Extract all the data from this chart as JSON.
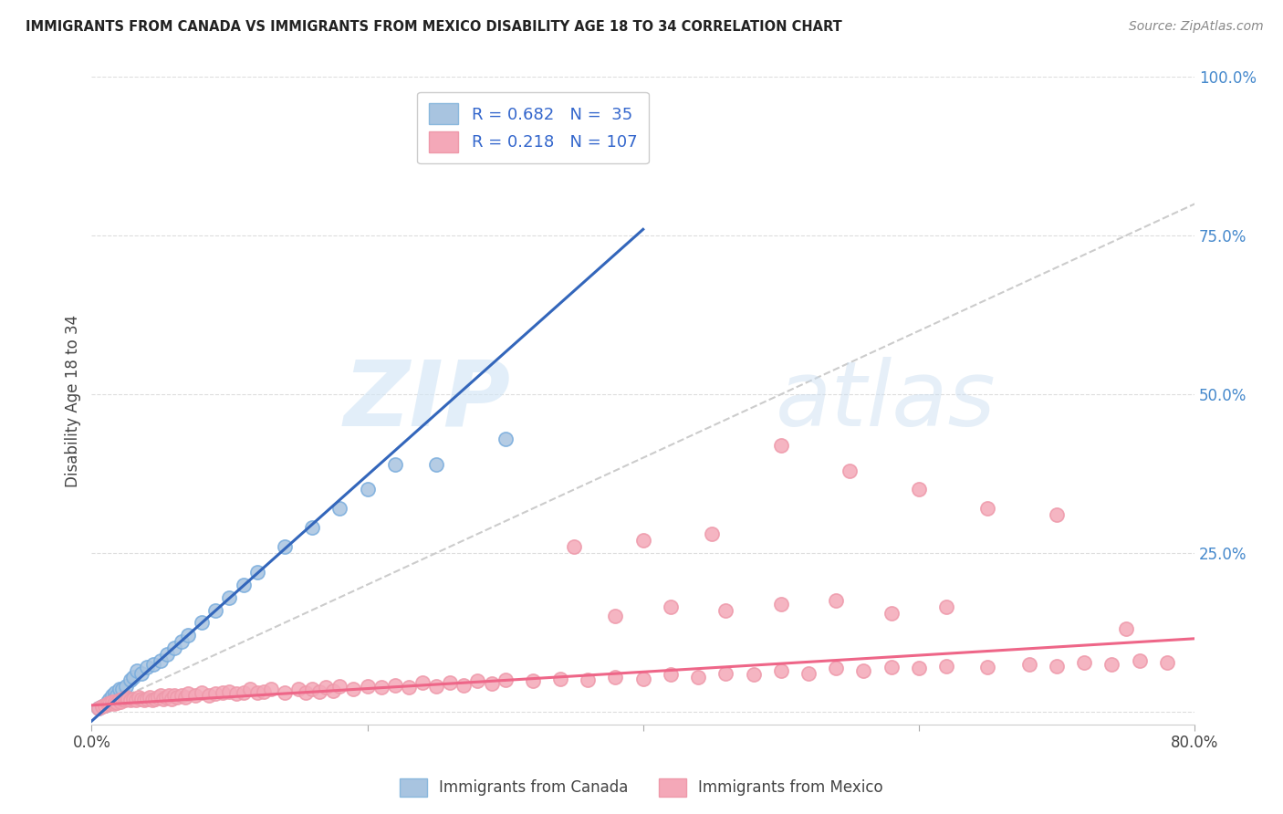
{
  "title": "IMMIGRANTS FROM CANADA VS IMMIGRANTS FROM MEXICO DISABILITY AGE 18 TO 34 CORRELATION CHART",
  "source": "Source: ZipAtlas.com",
  "ylabel": "Disability Age 18 to 34",
  "x_min": 0.0,
  "x_max": 0.8,
  "y_min": -0.02,
  "y_max": 1.0,
  "x_ticks": [
    0.0,
    0.2,
    0.4,
    0.6,
    0.8
  ],
  "x_tick_labels": [
    "0.0%",
    "",
    "",
    "",
    "80.0%"
  ],
  "y_ticks_right": [
    0.0,
    0.25,
    0.5,
    0.75,
    1.0
  ],
  "y_tick_labels_right": [
    "",
    "25.0%",
    "50.0%",
    "75.0%",
    "100.0%"
  ],
  "canada_color": "#a8c4e0",
  "mexico_color": "#f4a8b8",
  "canada_line_color": "#3366bb",
  "mexico_line_color": "#ee6688",
  "diagonal_color": "#cccccc",
  "R_canada": 0.682,
  "N_canada": 35,
  "R_mexico": 0.218,
  "N_mexico": 107,
  "legend_label_canada": "Immigrants from Canada",
  "legend_label_mexico": "Immigrants from Mexico",
  "watermark_zip": "ZIP",
  "watermark_atlas": "atlas",
  "canada_line_x0": 0.0,
  "canada_line_y0": -0.015,
  "canada_line_x1": 0.4,
  "canada_line_y1": 0.76,
  "mexico_line_x0": 0.0,
  "mexico_line_y0": 0.01,
  "mexico_line_x1": 0.8,
  "mexico_line_y1": 0.115,
  "canada_scatter_x": [
    0.005,
    0.008,
    0.01,
    0.012,
    0.013,
    0.015,
    0.016,
    0.017,
    0.018,
    0.02,
    0.022,
    0.025,
    0.028,
    0.03,
    0.033,
    0.036,
    0.04,
    0.045,
    0.05,
    0.055,
    0.06,
    0.065,
    0.07,
    0.08,
    0.09,
    0.1,
    0.11,
    0.12,
    0.14,
    0.16,
    0.18,
    0.2,
    0.22,
    0.25,
    0.3
  ],
  "canada_scatter_y": [
    0.005,
    0.008,
    0.01,
    0.015,
    0.02,
    0.025,
    0.02,
    0.03,
    0.025,
    0.035,
    0.035,
    0.04,
    0.05,
    0.055,
    0.065,
    0.06,
    0.07,
    0.075,
    0.08,
    0.09,
    0.1,
    0.11,
    0.12,
    0.14,
    0.16,
    0.18,
    0.2,
    0.22,
    0.26,
    0.29,
    0.32,
    0.35,
    0.39,
    0.39,
    0.43
  ],
  "mexico_scatter_x": [
    0.005,
    0.008,
    0.01,
    0.012,
    0.013,
    0.015,
    0.016,
    0.017,
    0.018,
    0.02,
    0.021,
    0.022,
    0.024,
    0.025,
    0.026,
    0.028,
    0.03,
    0.032,
    0.034,
    0.036,
    0.038,
    0.04,
    0.042,
    0.044,
    0.046,
    0.048,
    0.05,
    0.052,
    0.054,
    0.056,
    0.058,
    0.06,
    0.062,
    0.065,
    0.068,
    0.07,
    0.075,
    0.08,
    0.085,
    0.09,
    0.095,
    0.1,
    0.105,
    0.11,
    0.115,
    0.12,
    0.125,
    0.13,
    0.14,
    0.15,
    0.155,
    0.16,
    0.165,
    0.17,
    0.175,
    0.18,
    0.19,
    0.2,
    0.21,
    0.22,
    0.23,
    0.24,
    0.25,
    0.26,
    0.27,
    0.28,
    0.29,
    0.3,
    0.32,
    0.34,
    0.36,
    0.38,
    0.4,
    0.42,
    0.44,
    0.46,
    0.48,
    0.5,
    0.52,
    0.54,
    0.56,
    0.58,
    0.6,
    0.62,
    0.65,
    0.68,
    0.7,
    0.72,
    0.74,
    0.76,
    0.78,
    0.38,
    0.42,
    0.46,
    0.5,
    0.54,
    0.58,
    0.62,
    0.35,
    0.4,
    0.45,
    0.5,
    0.55,
    0.6,
    0.65,
    0.7,
    0.75
  ],
  "mexico_scatter_y": [
    0.005,
    0.008,
    0.01,
    0.012,
    0.013,
    0.015,
    0.012,
    0.016,
    0.014,
    0.018,
    0.016,
    0.02,
    0.018,
    0.022,
    0.02,
    0.018,
    0.02,
    0.018,
    0.022,
    0.02,
    0.018,
    0.02,
    0.022,
    0.018,
    0.02,
    0.022,
    0.025,
    0.02,
    0.022,
    0.025,
    0.02,
    0.025,
    0.022,
    0.025,
    0.022,
    0.028,
    0.025,
    0.03,
    0.025,
    0.028,
    0.03,
    0.032,
    0.028,
    0.03,
    0.035,
    0.03,
    0.032,
    0.035,
    0.03,
    0.035,
    0.03,
    0.035,
    0.032,
    0.038,
    0.033,
    0.04,
    0.035,
    0.04,
    0.038,
    0.042,
    0.038,
    0.045,
    0.04,
    0.045,
    0.042,
    0.048,
    0.044,
    0.05,
    0.048,
    0.052,
    0.05,
    0.055,
    0.052,
    0.058,
    0.055,
    0.06,
    0.058,
    0.065,
    0.06,
    0.068,
    0.065,
    0.07,
    0.068,
    0.072,
    0.07,
    0.075,
    0.072,
    0.078,
    0.075,
    0.08,
    0.078,
    0.15,
    0.165,
    0.16,
    0.17,
    0.175,
    0.155,
    0.165,
    0.26,
    0.27,
    0.28,
    0.42,
    0.38,
    0.35,
    0.32,
    0.31,
    0.13
  ]
}
